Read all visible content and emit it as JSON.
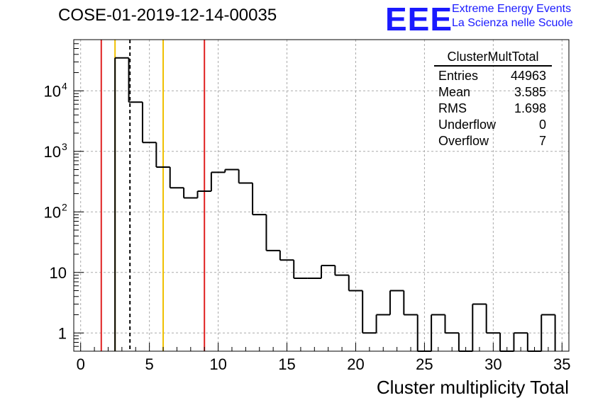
{
  "title": "COSE-01-2019-12-14-00035",
  "logo": {
    "mark": "EEE",
    "line1": "Extreme Energy Events",
    "line2": "La Scienza nelle Scuole"
  },
  "stats": {
    "title": "ClusterMultTotal",
    "rows": [
      {
        "label": "Entries",
        "value": "44963"
      },
      {
        "label": "Mean",
        "value": "3.585"
      },
      {
        "label": "RMS",
        "value": "1.698"
      },
      {
        "label": "Underflow",
        "value": "0"
      },
      {
        "label": "Overflow",
        "value": "7"
      }
    ]
  },
  "chart_data": {
    "type": "histogram",
    "xlabel": "Cluster multiplicity Total",
    "ylabel": "",
    "xlim": [
      -0.5,
      35.5
    ],
    "ylim": [
      0.5,
      70000
    ],
    "yscale": "log",
    "grid": true,
    "bin_width": 1,
    "bin_low_edges": [
      2.5,
      3.5,
      4.5,
      5.5,
      6.5,
      7.5,
      8.5,
      9.5,
      10.5,
      11.5,
      12.5,
      13.5,
      14.5,
      15.5,
      16.5,
      17.5,
      18.5,
      19.5,
      20.5,
      21.5,
      22.5,
      23.5,
      24.5,
      25.5,
      26.5,
      27.5,
      28.5,
      29.5,
      30.5,
      31.5,
      32.5,
      33.5
    ],
    "counts": [
      35000,
      6500,
      1400,
      550,
      250,
      170,
      220,
      450,
      500,
      300,
      90,
      23,
      16,
      8,
      8,
      13,
      9,
      5,
      1,
      2,
      5,
      2,
      0,
      2,
      1,
      0,
      3,
      1,
      0,
      1,
      0,
      2
    ],
    "x_ticks": [
      "0",
      "5",
      "10",
      "15",
      "20",
      "25",
      "30",
      "35"
    ],
    "y_ticks": [
      {
        "value": 1,
        "label": "1"
      },
      {
        "value": 10,
        "label": "10"
      },
      {
        "value": 100,
        "label": "10",
        "exp": "2"
      },
      {
        "value": 1000,
        "label": "10",
        "exp": "3"
      },
      {
        "value": 10000,
        "label": "10",
        "exp": "4"
      }
    ],
    "vertical_lines": [
      {
        "x": 1.5,
        "color": "#e02020",
        "style": "solid"
      },
      {
        "x": 2.5,
        "color": "#f0c000",
        "style": "solid"
      },
      {
        "x": 3.585,
        "color": "#000000",
        "style": "dashed"
      },
      {
        "x": 6.0,
        "color": "#f0c000",
        "style": "solid"
      },
      {
        "x": 9.0,
        "color": "#e02020",
        "style": "solid"
      }
    ]
  }
}
